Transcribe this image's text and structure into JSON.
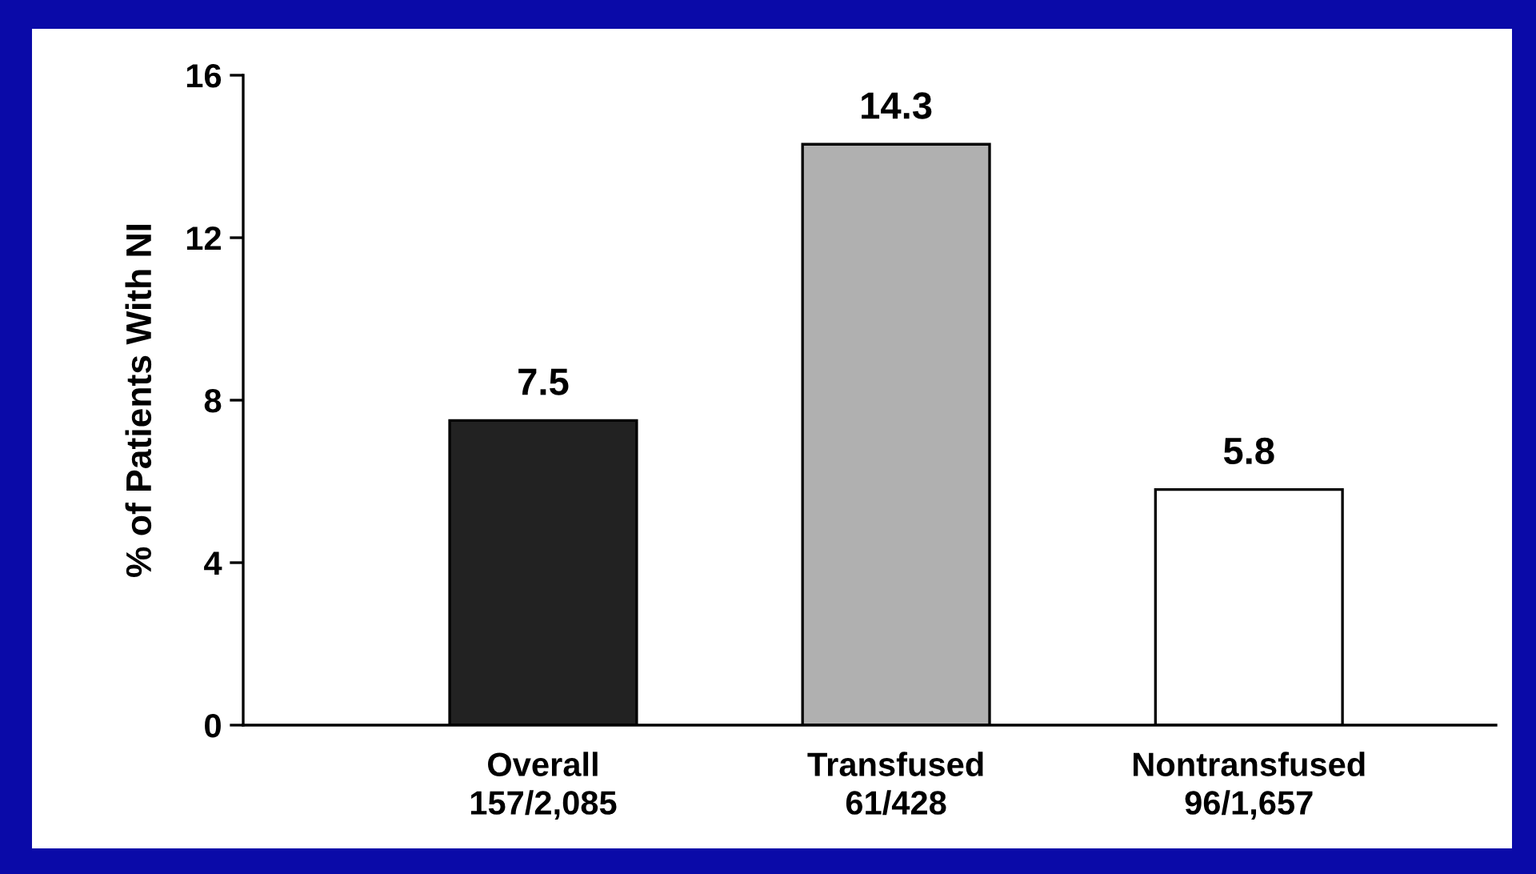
{
  "chart_data": {
    "type": "bar",
    "ylabel": "% of Patients With NI",
    "categories": [
      "Overall\n157/2,085",
      "Transfused\n61/428",
      "Nontransfused\n96/1,657"
    ],
    "values": [
      7.5,
      14.3,
      5.8
    ],
    "colors": [
      "#222222",
      "#b0b0b0",
      "#ffffff"
    ],
    "ylim": [
      0,
      16
    ],
    "yticks": [
      0,
      4,
      8,
      12,
      16
    ],
    "data_labels": true,
    "grid": false,
    "legend": false
  }
}
